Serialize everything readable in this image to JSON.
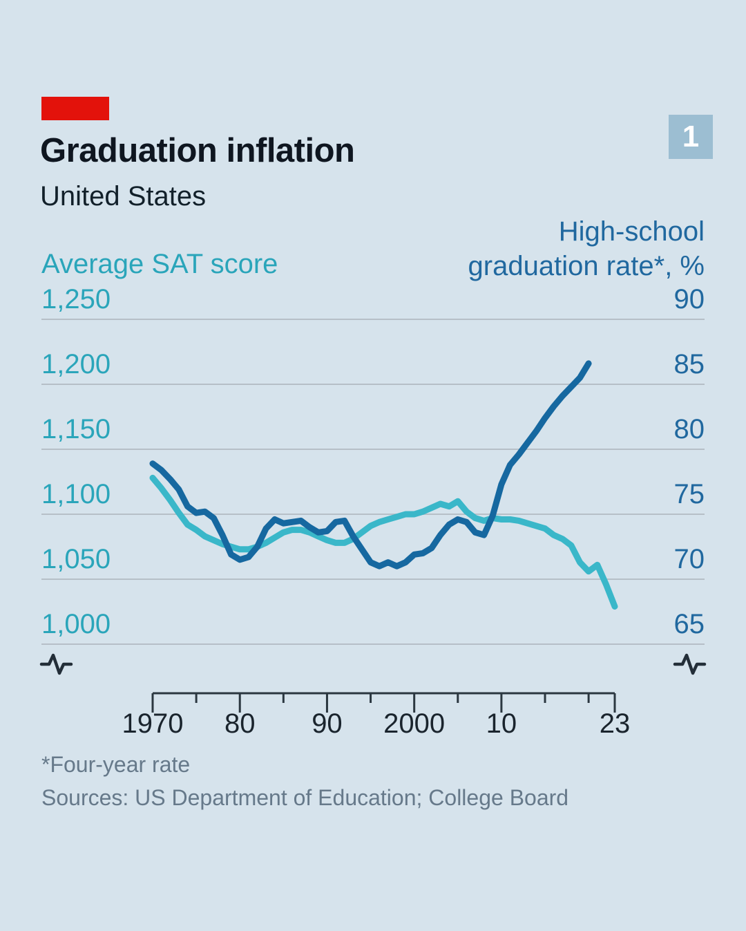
{
  "page": {
    "background_color": "#d6e3ec"
  },
  "header": {
    "kicker_color": "#e3120b",
    "title": "Graduation inflation",
    "subtitle": "United States",
    "figure_number": "1"
  },
  "chart": {
    "left_axis": {
      "title": "Average SAT score",
      "color": "#2aa5ba",
      "ticks": [
        "1,250",
        "1,200",
        "1,150",
        "1,100",
        "1,050",
        "1,000"
      ],
      "axis_break_marker": "pulse-squiggle"
    },
    "right_axis": {
      "title_line1": "High-school",
      "title_line2": "graduation rate*, %",
      "color": "#20689f",
      "ticks": [
        "90",
        "85",
        "80",
        "75",
        "70",
        "65"
      ],
      "axis_break_marker": "pulse-squiggle"
    },
    "x_axis": {
      "labels": [
        {
          "text": "1970",
          "year": 1970
        },
        {
          "text": "80",
          "year": 1980
        },
        {
          "text": "90",
          "year": 1990
        },
        {
          "text": "2000",
          "year": 2000
        },
        {
          "text": "10",
          "year": 2010
        },
        {
          "text": "23",
          "year": 2023
        }
      ],
      "major_tick_years": [
        1970,
        1980,
        1990,
        2000,
        2010,
        2023
      ],
      "minor_tick_years": [
        1975,
        1985,
        1995,
        2005,
        2015,
        2020
      ]
    }
  },
  "chart_data": {
    "type": "line",
    "title": "Graduation inflation",
    "subtitle": "United States",
    "grid": "horizontal",
    "legend_position": "axis-labels",
    "left_axis_range": [
      1000,
      1250
    ],
    "right_axis_range": [
      65,
      90
    ],
    "x_range": [
      1970,
      2023
    ],
    "series": [
      {
        "name": "Average SAT score",
        "axis": "left",
        "color": "#3ab7c9",
        "years": [
          1970,
          1971,
          1972,
          1973,
          1974,
          1975,
          1976,
          1977,
          1978,
          1979,
          1980,
          1981,
          1982,
          1983,
          1984,
          1985,
          1986,
          1987,
          1988,
          1989,
          1990,
          1991,
          1992,
          1993,
          1994,
          1995,
          1996,
          1997,
          1998,
          1999,
          2000,
          2001,
          2002,
          2003,
          2004,
          2005,
          2006,
          2007,
          2008,
          2009,
          2010,
          2011,
          2012,
          2013,
          2014,
          2015,
          2016,
          2017,
          2018,
          2019,
          2020,
          2021,
          2022,
          2023
        ],
        "values": [
          1128,
          1120,
          1111,
          1101,
          1092,
          1088,
          1083,
          1080,
          1077,
          1075,
          1073,
          1073,
          1075,
          1078,
          1082,
          1086,
          1088,
          1088,
          1086,
          1083,
          1080,
          1078,
          1078,
          1081,
          1086,
          1091,
          1094,
          1096,
          1098,
          1100,
          1100,
          1102,
          1105,
          1108,
          1106,
          1110,
          1102,
          1097,
          1095,
          1097,
          1096,
          1096,
          1095,
          1093,
          1091,
          1089,
          1084,
          1081,
          1076,
          1063,
          1056,
          1061,
          1046,
          1029
        ]
      },
      {
        "name": "High-school graduation rate, %",
        "axis": "right",
        "color": "#1668a0",
        "years": [
          1970,
          1971,
          1972,
          1973,
          1974,
          1975,
          1976,
          1977,
          1978,
          1979,
          1980,
          1981,
          1982,
          1983,
          1984,
          1985,
          1986,
          1987,
          1988,
          1989,
          1990,
          1991,
          1992,
          1993,
          1994,
          1995,
          1996,
          1997,
          1998,
          1999,
          2000,
          2001,
          2002,
          2003,
          2004,
          2005,
          2006,
          2007,
          2008,
          2009,
          2010,
          2011,
          2012,
          2013,
          2014,
          2015,
          2016,
          2017,
          2018,
          2019,
          2020
        ],
        "values": [
          78.9,
          78.4,
          77.7,
          76.9,
          75.6,
          75.1,
          75.2,
          74.7,
          73.4,
          71.9,
          71.5,
          71.7,
          72.5,
          73.9,
          74.6,
          74.3,
          74.4,
          74.5,
          74.0,
          73.6,
          73.7,
          74.4,
          74.5,
          73.3,
          72.3,
          71.3,
          71.0,
          71.3,
          71.0,
          71.3,
          71.9,
          72.0,
          72.4,
          73.4,
          74.2,
          74.6,
          74.4,
          73.6,
          73.4,
          74.9,
          77.3,
          78.8,
          79.6,
          80.5,
          81.4,
          82.4,
          83.3,
          84.1,
          84.8,
          85.5,
          86.6
        ]
      }
    ]
  },
  "footnotes": {
    "note": "*Four-year rate",
    "sources": "Sources: US Department of Education; College Board"
  }
}
